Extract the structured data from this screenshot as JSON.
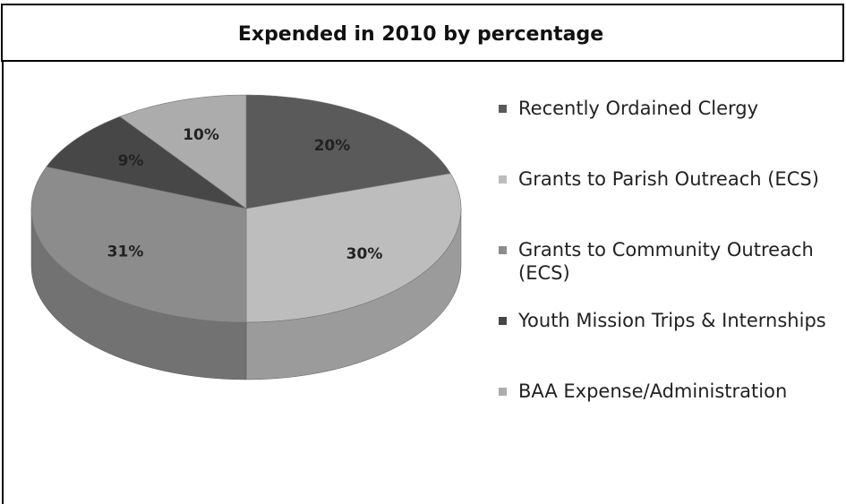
{
  "chart_data": {
    "type": "pie",
    "title": "Expended in 2010 by percentage",
    "categories": [
      "Recently Ordained Clergy",
      "Grants to Parish Outreach (ECS)",
      "Grants to Community Outreach (ECS)",
      "Youth Mission Trips & Internships",
      "BAA Expense/Administration"
    ],
    "values": [
      20,
      30,
      31,
      9,
      10
    ],
    "value_labels": [
      "20%",
      "30%",
      "31%",
      "9%",
      "10%"
    ],
    "colors": [
      "#5a5a5a",
      "#bdbdbd",
      "#8c8c8c",
      "#474747",
      "#acacac"
    ],
    "legend": "right"
  }
}
